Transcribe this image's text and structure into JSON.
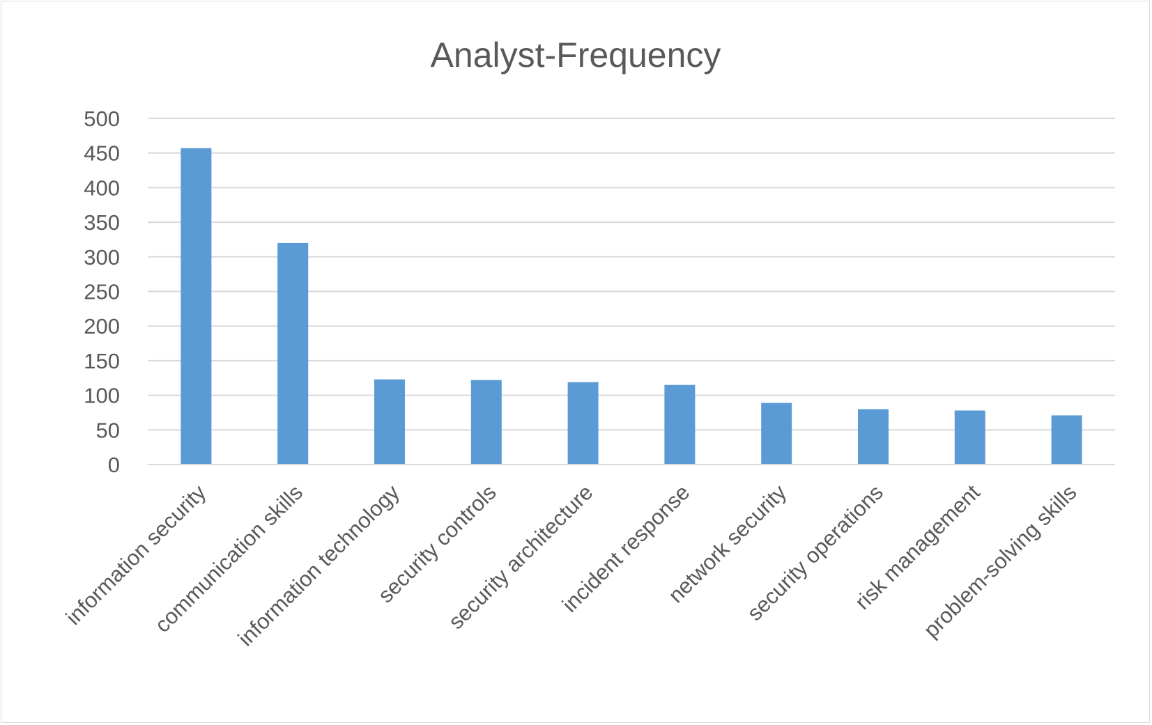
{
  "chart_data": {
    "type": "bar",
    "title": "Analyst-Frequency",
    "xlabel": "",
    "ylabel": "",
    "categories": [
      "information security",
      "communication skills",
      "information technology",
      "security controls",
      "security architecture",
      "incident response",
      "network security",
      "security operations",
      "risk management",
      "problem-solving skills"
    ],
    "values": [
      457,
      320,
      123,
      122,
      119,
      115,
      89,
      80,
      78,
      71
    ],
    "ylim": [
      0,
      500
    ],
    "yticks": [
      "0",
      "50",
      "100",
      "150",
      "200",
      "250",
      "300",
      "350",
      "400",
      "450",
      "500"
    ],
    "grid": true,
    "legend": "none",
    "bar_color": "#5b9bd5",
    "grid_color": "#d9d9d9",
    "text_color": "#595959"
  }
}
